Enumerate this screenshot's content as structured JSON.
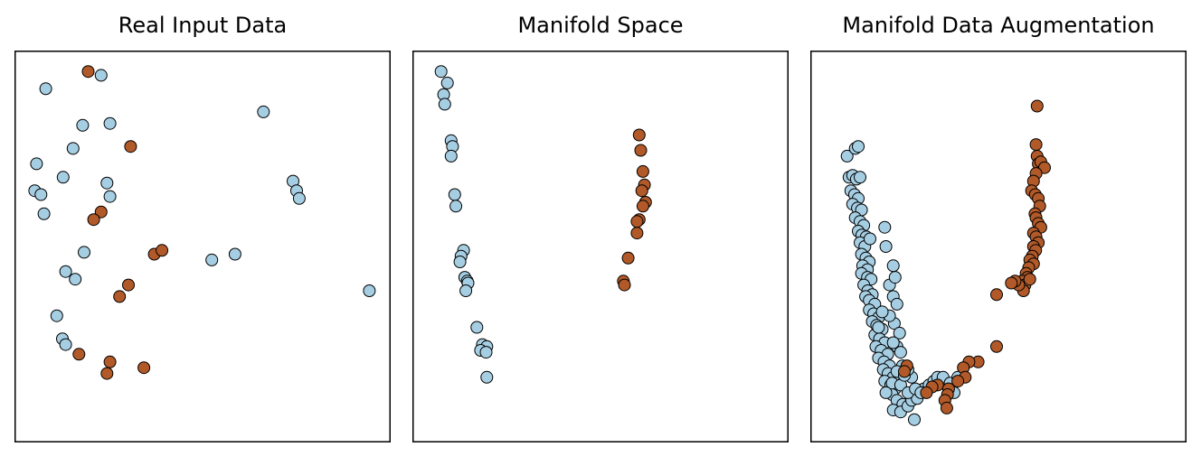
{
  "colors": {
    "class_a": "#a6cee3",
    "class_b": "#b15928",
    "edge": "#000000",
    "frame": "#000000"
  },
  "chart_data": [
    {
      "type": "scatter",
      "title": "Real Input Data",
      "xlim": [
        0,
        100
      ],
      "ylim": [
        0,
        100
      ],
      "grid": false,
      "ticks": false,
      "series": [
        {
          "color_key": "class_a",
          "points": [
            [
              7.5,
              91
            ],
            [
              22.5,
              94.5
            ],
            [
              24.9,
              82
            ],
            [
              17.5,
              81.5
            ],
            [
              14.9,
              75.5
            ],
            [
              5,
              71.5
            ],
            [
              12.2,
              68
            ],
            [
              4.5,
              64.5
            ],
            [
              6.2,
              63.5
            ],
            [
              24.1,
              66.5
            ],
            [
              24.9,
              63
            ],
            [
              7,
              58.5
            ],
            [
              66.5,
              85
            ],
            [
              74.5,
              67
            ],
            [
              75.5,
              64.5
            ],
            [
              76.2,
              62.5
            ],
            [
              17.9,
              48.5
            ],
            [
              12.9,
              43.5
            ],
            [
              15.5,
              41.5
            ],
            [
              52.5,
              46.5
            ],
            [
              58.8,
              48
            ],
            [
              95.2,
              38.5
            ],
            [
              10.5,
              32
            ],
            [
              12,
              26
            ],
            [
              12.9,
              24.5
            ]
          ]
        },
        {
          "color_key": "class_b",
          "points": [
            [
              19,
              95.5
            ],
            [
              30.5,
              76
            ],
            [
              22.5,
              59
            ],
            [
              20.5,
              57
            ],
            [
              36.9,
              48
            ],
            [
              39,
              49
            ],
            [
              29.9,
              40
            ],
            [
              27.5,
              37
            ],
            [
              16.5,
              22
            ],
            [
              24.9,
              20
            ],
            [
              24.1,
              17
            ],
            [
              34.1,
              18.5
            ]
          ]
        }
      ]
    },
    {
      "type": "scatter",
      "title": "Manifold Space",
      "xlim": [
        0,
        100
      ],
      "ylim": [
        0,
        100
      ],
      "grid": false,
      "ticks": false,
      "series": [
        {
          "color_key": "class_a",
          "points": [
            [
              6.8,
              95.5
            ],
            [
              8.5,
              92.5
            ],
            [
              7.5,
              89.5
            ],
            [
              7.8,
              87
            ],
            [
              9.5,
              77.5
            ],
            [
              9.9,
              76
            ],
            [
              9.5,
              73.5
            ],
            [
              10.5,
              63.5
            ],
            [
              10.8,
              60.5
            ],
            [
              12.9,
              49
            ],
            [
              12.2,
              47.5
            ],
            [
              11.9,
              46
            ],
            [
              13.2,
              42
            ],
            [
              13.9,
              41
            ],
            [
              14.1,
              40.5
            ],
            [
              13.5,
              38.5
            ],
            [
              16.5,
              29
            ],
            [
              18,
              24.5
            ],
            [
              19.2,
              24
            ],
            [
              17.5,
              23
            ],
            [
              19,
              22.5
            ],
            [
              19.2,
              16
            ]
          ]
        },
        {
          "color_key": "class_b",
          "points": [
            [
              60.5,
              79
            ],
            [
              60.9,
              75
            ],
            [
              61.5,
              69.5
            ],
            [
              61.9,
              66
            ],
            [
              61.2,
              64.5
            ],
            [
              62.2,
              61.5
            ],
            [
              61.5,
              60.5
            ],
            [
              60.5,
              57
            ],
            [
              59.9,
              56.5
            ],
            [
              59.9,
              53.5
            ],
            [
              57.5,
              47
            ],
            [
              56.2,
              41
            ],
            [
              56.5,
              40
            ]
          ]
        }
      ]
    },
    {
      "type": "scatter",
      "title": "Manifold Data Augmentation",
      "xlim": [
        0,
        100
      ],
      "ylim": [
        0,
        100
      ],
      "grid": false,
      "ticks": false,
      "series": [
        {
          "color_key": "class_a",
          "points": [
            [
              9,
              73.5
            ],
            [
              11.2,
              75.5
            ],
            [
              12,
              76
            ],
            [
              9.5,
              68
            ],
            [
              10.5,
              68.5
            ],
            [
              11.5,
              67.5
            ],
            [
              12.5,
              68
            ],
            [
              10,
              64.5
            ],
            [
              11,
              63.5
            ],
            [
              12,
              62.5
            ],
            [
              10.5,
              61
            ],
            [
              11.8,
              60
            ],
            [
              12.9,
              59.5
            ],
            [
              11.2,
              57.5
            ],
            [
              12.5,
              56.5
            ],
            [
              13.5,
              55.5
            ],
            [
              12,
              54
            ],
            [
              13,
              53
            ],
            [
              14.2,
              52.5
            ],
            [
              12.5,
              51
            ],
            [
              13.8,
              50
            ],
            [
              15.2,
              52
            ],
            [
              12.9,
              48
            ],
            [
              14.1,
              47
            ],
            [
              15,
              46
            ],
            [
              13.2,
              45
            ],
            [
              14.5,
              44
            ],
            [
              12.9,
              43
            ],
            [
              14.5,
              42
            ],
            [
              15.5,
              41.5
            ],
            [
              13.5,
              40
            ],
            [
              14.6,
              38.5
            ],
            [
              15.8,
              37.5
            ],
            [
              14,
              37
            ],
            [
              15,
              36
            ],
            [
              16.5,
              35
            ],
            [
              15,
              33.5
            ],
            [
              16.2,
              32.5
            ],
            [
              17.5,
              31.5
            ],
            [
              15.8,
              30.5
            ],
            [
              17,
              29.5
            ],
            [
              18.5,
              28.5
            ],
            [
              16.5,
              27
            ],
            [
              17.8,
              26
            ],
            [
              19.2,
              25
            ],
            [
              16.8,
              24
            ],
            [
              18.2,
              23
            ],
            [
              20,
              22
            ],
            [
              17.5,
              21
            ],
            [
              19,
              20
            ],
            [
              20.5,
              19
            ],
            [
              18.8,
              18
            ],
            [
              20.1,
              17
            ],
            [
              21.5,
              16
            ],
            [
              19.2,
              15
            ],
            [
              20.8,
              14
            ],
            [
              22,
              13
            ],
            [
              21.2,
              11.5
            ],
            [
              22.5,
              10
            ],
            [
              24.1,
              9
            ],
            [
              21.5,
              7.5
            ],
            [
              23.5,
              7
            ],
            [
              25.5,
              8.5
            ],
            [
              26.5,
              10
            ],
            [
              28,
              10.5
            ],
            [
              27.2,
              5
            ],
            [
              29.8,
              13
            ],
            [
              31.2,
              14
            ],
            [
              32.5,
              15
            ],
            [
              33.5,
              16
            ],
            [
              35,
              16
            ],
            [
              36.9,
              14.5
            ],
            [
              38,
              12
            ],
            [
              39,
              16
            ],
            [
              21.2,
              14.5
            ],
            [
              19.5,
              12
            ],
            [
              23.5,
              14
            ],
            [
              26.5,
              16
            ],
            [
              25.5,
              12
            ],
            [
              27.5,
              13
            ],
            [
              29,
              12
            ],
            [
              21.5,
              37
            ],
            [
              22.5,
              35
            ],
            [
              21.8,
              30
            ],
            [
              23.2,
              27.5
            ],
            [
              22.5,
              24
            ],
            [
              23.5,
              22.5
            ],
            [
              24,
              19
            ],
            [
              22.5,
              17.5
            ],
            [
              24.5,
              16.5
            ],
            [
              25.5,
              18
            ],
            [
              21.5,
              25
            ],
            [
              20.5,
              32
            ],
            [
              20.5,
              40
            ],
            [
              21.5,
              45
            ],
            [
              19.5,
              50
            ],
            [
              19.2,
              55
            ],
            [
              22,
              42
            ],
            [
              17.5,
              29
            ],
            [
              18.5,
              33
            ]
          ]
        },
        {
          "color_key": "class_b",
          "points": [
            [
              60.5,
              86.5
            ],
            [
              60.2,
              76.5
            ],
            [
              60.5,
              73.5
            ],
            [
              60.8,
              71.5
            ],
            [
              61.5,
              72
            ],
            [
              62.5,
              70.5
            ],
            [
              60.2,
              69
            ],
            [
              59.5,
              67
            ],
            [
              59,
              64.5
            ],
            [
              60,
              63.5
            ],
            [
              60.8,
              62.5
            ],
            [
              61.2,
              60.5
            ],
            [
              59.9,
              58.5
            ],
            [
              60.2,
              57.5
            ],
            [
              60.8,
              56
            ],
            [
              61.5,
              55
            ],
            [
              59.5,
              53.5
            ],
            [
              60.2,
              52.5
            ],
            [
              60.8,
              51
            ],
            [
              59.5,
              50
            ],
            [
              60.1,
              49
            ],
            [
              59.2,
              47.5
            ],
            [
              58.5,
              46.5
            ],
            [
              59.5,
              45.5
            ],
            [
              58.2,
              44.5
            ],
            [
              57.5,
              43
            ],
            [
              57.9,
              42
            ],
            [
              56.5,
              41
            ],
            [
              57.2,
              40
            ],
            [
              58.5,
              41.5
            ],
            [
              56.8,
              38.5
            ],
            [
              55.5,
              40
            ],
            [
              54.5,
              41
            ],
            [
              53.5,
              40.5
            ],
            [
              49.5,
              37.5
            ],
            [
              49.5,
              24
            ],
            [
              44.5,
              20
            ],
            [
              42,
              20
            ],
            [
              40.5,
              18.5
            ],
            [
              41,
              16
            ],
            [
              39,
              15
            ],
            [
              36.5,
              13
            ],
            [
              36.2,
              11.5
            ],
            [
              33.5,
              14
            ],
            [
              32,
              13.5
            ],
            [
              30.5,
              12
            ],
            [
              25.2,
              19
            ],
            [
              24.5,
              17.5
            ],
            [
              35.5,
              10
            ],
            [
              36,
              8
            ]
          ]
        }
      ]
    }
  ]
}
